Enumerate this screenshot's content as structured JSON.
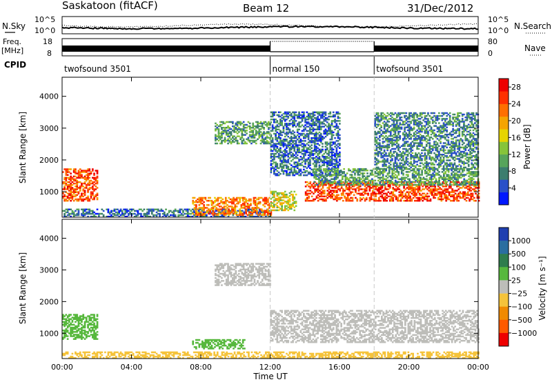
{
  "header": {
    "station": "Saskatoon (fitACF)",
    "beam": "Beam 12",
    "date": "31/Dec/2012"
  },
  "status_panels": {
    "nsky_label": "N.Sky",
    "nsky_ticks": [
      "10^5",
      "10^0"
    ],
    "nsearch_label": "N.Search",
    "nsearch_ticks": [
      "10^5",
      "10^0"
    ],
    "freq_label": "Freq.",
    "freq_unit": "[MHz]",
    "freq_ticks": [
      "18",
      "8"
    ],
    "nave_label": "Nave",
    "nave_ticks": [
      "80",
      "0"
    ],
    "cpid_label": "CPID",
    "cpid_segments": [
      {
        "label": "twofsound 3501",
        "start_hour": 0,
        "end_hour": 12
      },
      {
        "label": "normal 150",
        "start_hour": 12,
        "end_hour": 18
      },
      {
        "label": "twofsound 3501",
        "start_hour": 18,
        "end_hour": 24
      }
    ]
  },
  "x_axis": {
    "label": "Time UT",
    "ticks": [
      "00:00",
      "04:00",
      "08:00",
      "12:00",
      "16:00",
      "20:00",
      "00:00"
    ],
    "range_hours": [
      0,
      24
    ]
  },
  "y_axis": {
    "label": "Slant Range [km]",
    "ticks": [
      "1000",
      "2000",
      "3000",
      "4000"
    ],
    "range_km": [
      200,
      4600
    ]
  },
  "power_colorbar": {
    "label": "Power [dB]",
    "ticks": [
      "4",
      "8",
      "12",
      "16",
      "20",
      "24",
      "28"
    ],
    "colors": [
      "#0018ff",
      "#2a50c8",
      "#3c7d6e",
      "#57a45b",
      "#86c43a",
      "#e6d400",
      "#f5a400",
      "#ff6f00",
      "#ff3000",
      "#ee0000"
    ]
  },
  "velocity_colorbar": {
    "label": "Velocity [m s⁻¹]",
    "ticks": [
      "1000",
      "500",
      "100",
      "25",
      "−25",
      "−100",
      "−500",
      "−1000"
    ],
    "colors": [
      "#1f3fb0",
      "#2a6ea0",
      "#2f7d4d",
      "#57b83d",
      "#bdbdb9",
      "#f5c33a",
      "#f08a00",
      "#ff5a00",
      "#ee0000"
    ]
  },
  "chart_data": {
    "type": "heatmap",
    "title": "Saskatoon (fitACF)",
    "xlabel": "Time UT",
    "ylabel": "Slant Range [km]",
    "x_range_hours": [
      0,
      24
    ],
    "y_range_km": [
      200,
      4600
    ],
    "panels": [
      {
        "name": "Power [dB]",
        "echo_regions": [
          {
            "t_start": 0.0,
            "t_end": 2.0,
            "range_low_km": 700,
            "range_high_km": 1700,
            "value_db": 24
          },
          {
            "t_start": 0.0,
            "t_end": 12.0,
            "range_low_km": 200,
            "range_high_km": 450,
            "value_db": 6
          },
          {
            "t_start": 7.5,
            "t_end": 12.0,
            "range_low_km": 250,
            "range_high_km": 800,
            "value_db": 22
          },
          {
            "t_start": 8.8,
            "t_end": 12.0,
            "range_low_km": 2500,
            "range_high_km": 3200,
            "value_db": 10
          },
          {
            "t_start": 12.0,
            "t_end": 13.5,
            "range_low_km": 400,
            "range_high_km": 1000,
            "value_db": 16
          },
          {
            "t_start": 12.0,
            "t_end": 16.0,
            "range_low_km": 1500,
            "range_high_km": 3500,
            "value_db": 6
          },
          {
            "t_start": 14.0,
            "t_end": 24.0,
            "range_low_km": 700,
            "range_high_km": 1300,
            "value_db": 25
          },
          {
            "t_start": 14.5,
            "t_end": 24.0,
            "range_low_km": 1200,
            "range_high_km": 1700,
            "value_db": 10
          },
          {
            "t_start": 18.0,
            "t_end": 24.0,
            "range_low_km": 1700,
            "range_high_km": 3500,
            "value_db": 8
          }
        ]
      },
      {
        "name": "Velocity [m s-1]",
        "echo_regions": [
          {
            "t_start": 0.0,
            "t_end": 2.0,
            "range_low_km": 800,
            "range_high_km": 1600,
            "value_ms": 60
          },
          {
            "t_start": 0.0,
            "t_end": 12.0,
            "range_low_km": 200,
            "range_high_km": 400,
            "value_ms": -60
          },
          {
            "t_start": 7.5,
            "t_end": 10.5,
            "range_low_km": 500,
            "range_high_km": 800,
            "value_ms": 60
          },
          {
            "t_start": 8.8,
            "t_end": 12.0,
            "range_low_km": 2500,
            "range_high_km": 3200,
            "value_ms": 0
          },
          {
            "t_start": 12.0,
            "t_end": 24.0,
            "range_low_km": 700,
            "range_high_km": 1700,
            "value_ms": 0
          },
          {
            "t_start": 12.0,
            "t_end": 24.0,
            "range_low_km": 200,
            "range_high_km": 400,
            "value_ms": -80
          }
        ]
      }
    ]
  }
}
